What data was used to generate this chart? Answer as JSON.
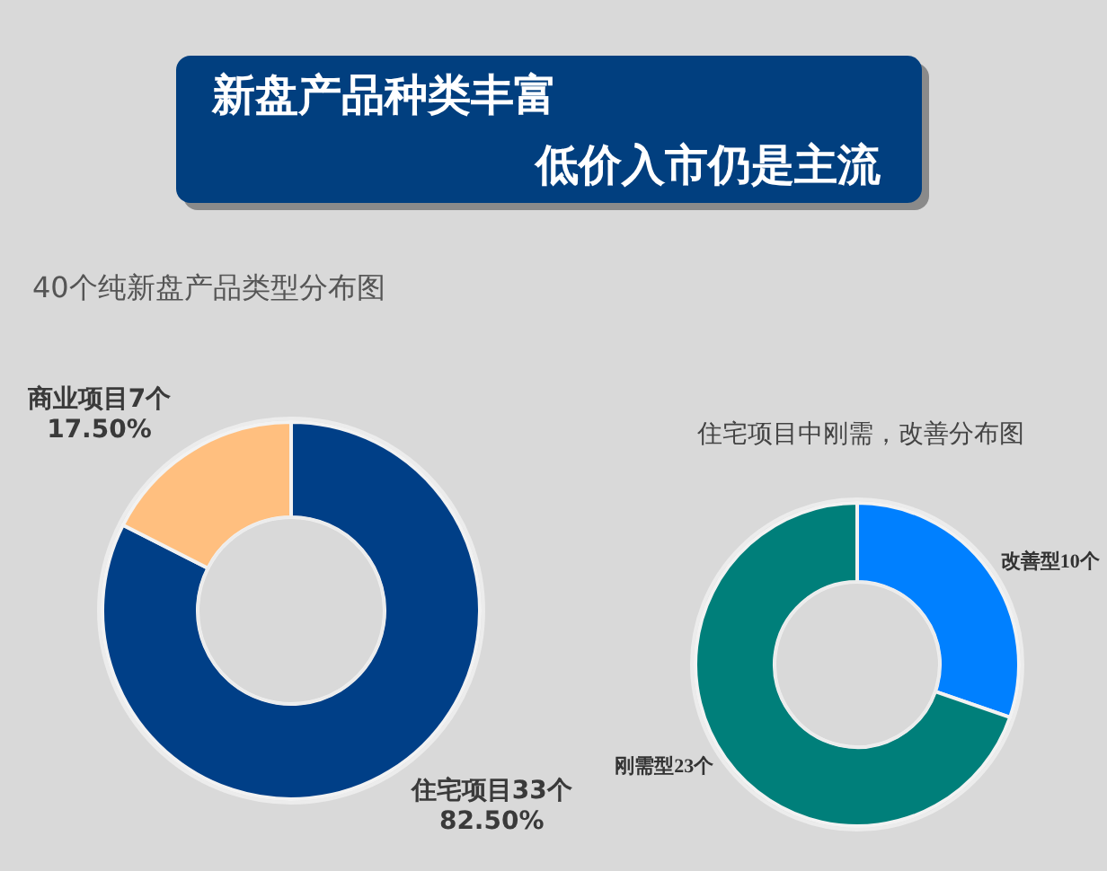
{
  "chart_data": [
    {
      "type": "other",
      "title": "新盘产品种类丰富",
      "subtitle": "低价入市仍是主流"
    },
    {
      "type": "donut",
      "title": "40个纯新盘产品类型分布图",
      "categories": [
        "住宅项目33个",
        "商业项目7个"
      ],
      "values": [
        82.5,
        17.5
      ],
      "value_labels": [
        "82.50%",
        "17.50%"
      ],
      "colors": [
        "#003f87",
        "#ffbf7f"
      ]
    },
    {
      "type": "donut",
      "title": "住宅项目中刚需，改善分布图",
      "categories": [
        "改善型10个",
        "刚需型23个"
      ],
      "values": [
        10,
        23
      ],
      "colors": [
        "#0080ff",
        "#007f7a"
      ]
    }
  ]
}
